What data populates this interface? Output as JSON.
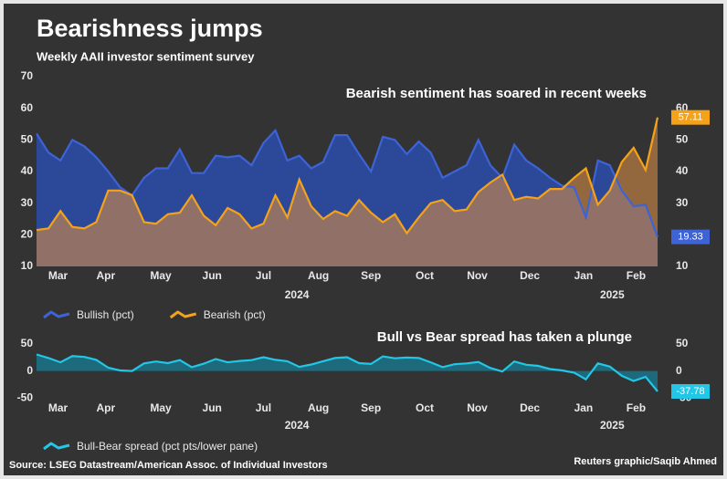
{
  "header": {
    "title": "Bearishness jumps",
    "subtitle": "Weekly AAII investor sentiment survey"
  },
  "chart_data": [
    {
      "type": "area",
      "annotation": "Bearish sentiment has soared in recent weeks",
      "xlim": [
        0,
        52
      ],
      "xticks": [
        {
          "value": 1.8,
          "label": "Mar"
        },
        {
          "value": 5.8,
          "label": "Apr"
        },
        {
          "value": 10.4,
          "label": "May"
        },
        {
          "value": 14.7,
          "label": "Jun"
        },
        {
          "value": 19.0,
          "label": "Jul"
        },
        {
          "value": 23.6,
          "label": "Aug"
        },
        {
          "value": 28.0,
          "label": "Sep"
        },
        {
          "value": 32.5,
          "label": "Oct"
        },
        {
          "value": 36.9,
          "label": "Nov"
        },
        {
          "value": 41.3,
          "label": "Dec"
        },
        {
          "value": 45.8,
          "label": "Jan"
        },
        {
          "value": 50.2,
          "label": "Feb"
        }
      ],
      "year_ticks": [
        {
          "value": 21.8,
          "label": "2024"
        },
        {
          "value": 48.2,
          "label": "2025"
        }
      ],
      "ylim": [
        10,
        70
      ],
      "yticks": [
        10,
        20,
        30,
        40,
        50,
        60,
        70
      ],
      "y2lim": [
        10,
        70
      ],
      "y2ticks": [
        10,
        20,
        30,
        40,
        50,
        60
      ],
      "grid": false,
      "legend": "bottom-left",
      "last_value_label": true,
      "series": [
        {
          "name": "Bullish (pct)",
          "color": "#3d63d6",
          "fill": "#2c4899",
          "values": [
            52,
            46,
            43.5,
            50,
            48,
            44.5,
            40,
            35,
            32.5,
            38,
            41,
            41,
            47,
            39.5,
            39.5,
            45,
            44.5,
            45,
            42,
            49,
            53,
            43.5,
            45,
            41,
            43,
            51.5,
            51.5,
            45.5,
            40,
            51,
            50,
            45.5,
            49.5,
            46,
            38,
            40,
            42,
            50,
            42,
            38,
            48.5,
            43.5,
            41,
            38,
            35.5,
            35,
            25.5,
            43.5,
            42,
            34,
            29,
            29.5,
            19.33
          ]
        },
        {
          "name": "Bearish (pct)",
          "color": "#f5a21b",
          "fill": "rgba(214,140,70,0.6)",
          "values": [
            21.5,
            22,
            27.5,
            22.5,
            22,
            24,
            34,
            34,
            32.5,
            24,
            23.5,
            26.5,
            27,
            32.5,
            26,
            23,
            28.5,
            26.5,
            22,
            23.5,
            32.5,
            25.5,
            37.5,
            29,
            25,
            27.5,
            26,
            31,
            27,
            24,
            26.5,
            20.5,
            25.5,
            30,
            31,
            27.5,
            28,
            33.5,
            36.5,
            39,
            31,
            32,
            31.5,
            34.5,
            34.5,
            38,
            41,
            29.5,
            34,
            43,
            47.5,
            40.5,
            57.11
          ]
        }
      ]
    },
    {
      "type": "area",
      "annotation": "Bull vs Bear spread has taken a plunge",
      "xlim": [
        0,
        52
      ],
      "xticks": [
        {
          "value": 1.8,
          "label": "Mar"
        },
        {
          "value": 5.8,
          "label": "Apr"
        },
        {
          "value": 10.4,
          "label": "May"
        },
        {
          "value": 14.7,
          "label": "Jun"
        },
        {
          "value": 19.0,
          "label": "Jul"
        },
        {
          "value": 23.6,
          "label": "Aug"
        },
        {
          "value": 28.0,
          "label": "Sep"
        },
        {
          "value": 32.5,
          "label": "Oct"
        },
        {
          "value": 36.9,
          "label": "Nov"
        },
        {
          "value": 41.3,
          "label": "Dec"
        },
        {
          "value": 45.8,
          "label": "Jan"
        },
        {
          "value": 50.2,
          "label": "Feb"
        }
      ],
      "year_ticks": [
        {
          "value": 21.8,
          "label": "2024"
        },
        {
          "value": 48.2,
          "label": "2025"
        }
      ],
      "ylim": [
        -58,
        60
      ],
      "yticks": [
        -50,
        0,
        50
      ],
      "y2lim": [
        -58,
        60
      ],
      "y2ticks": [
        -50,
        0,
        50
      ],
      "grid": false,
      "legend": "bottom-left",
      "last_value_label": true,
      "series": [
        {
          "name": "Bull-Bear spread (pct pts/lower pane)",
          "color": "#22c6e6",
          "fill": "#1d6a7c",
          "values": [
            30.5,
            24,
            16,
            27.5,
            26,
            20.5,
            6,
            1,
            0,
            14,
            17.5,
            14.5,
            20,
            7,
            13.5,
            22,
            16,
            18.5,
            20,
            25.5,
            20.5,
            18,
            7.5,
            12,
            18,
            24,
            25.5,
            14.5,
            13,
            27,
            23.5,
            25,
            24,
            16,
            7,
            12.5,
            14,
            16.5,
            5.5,
            -1,
            17.5,
            11.5,
            9.5,
            3.5,
            1,
            -3,
            -15.5,
            14,
            8,
            -9,
            -18.5,
            -11,
            -37.78
          ]
        }
      ]
    }
  ],
  "footer": {
    "source": "Source: LSEG Datastream/American Assoc. of Individual Investors",
    "credit": "Reuters graphic/Saqib Ahmed"
  }
}
